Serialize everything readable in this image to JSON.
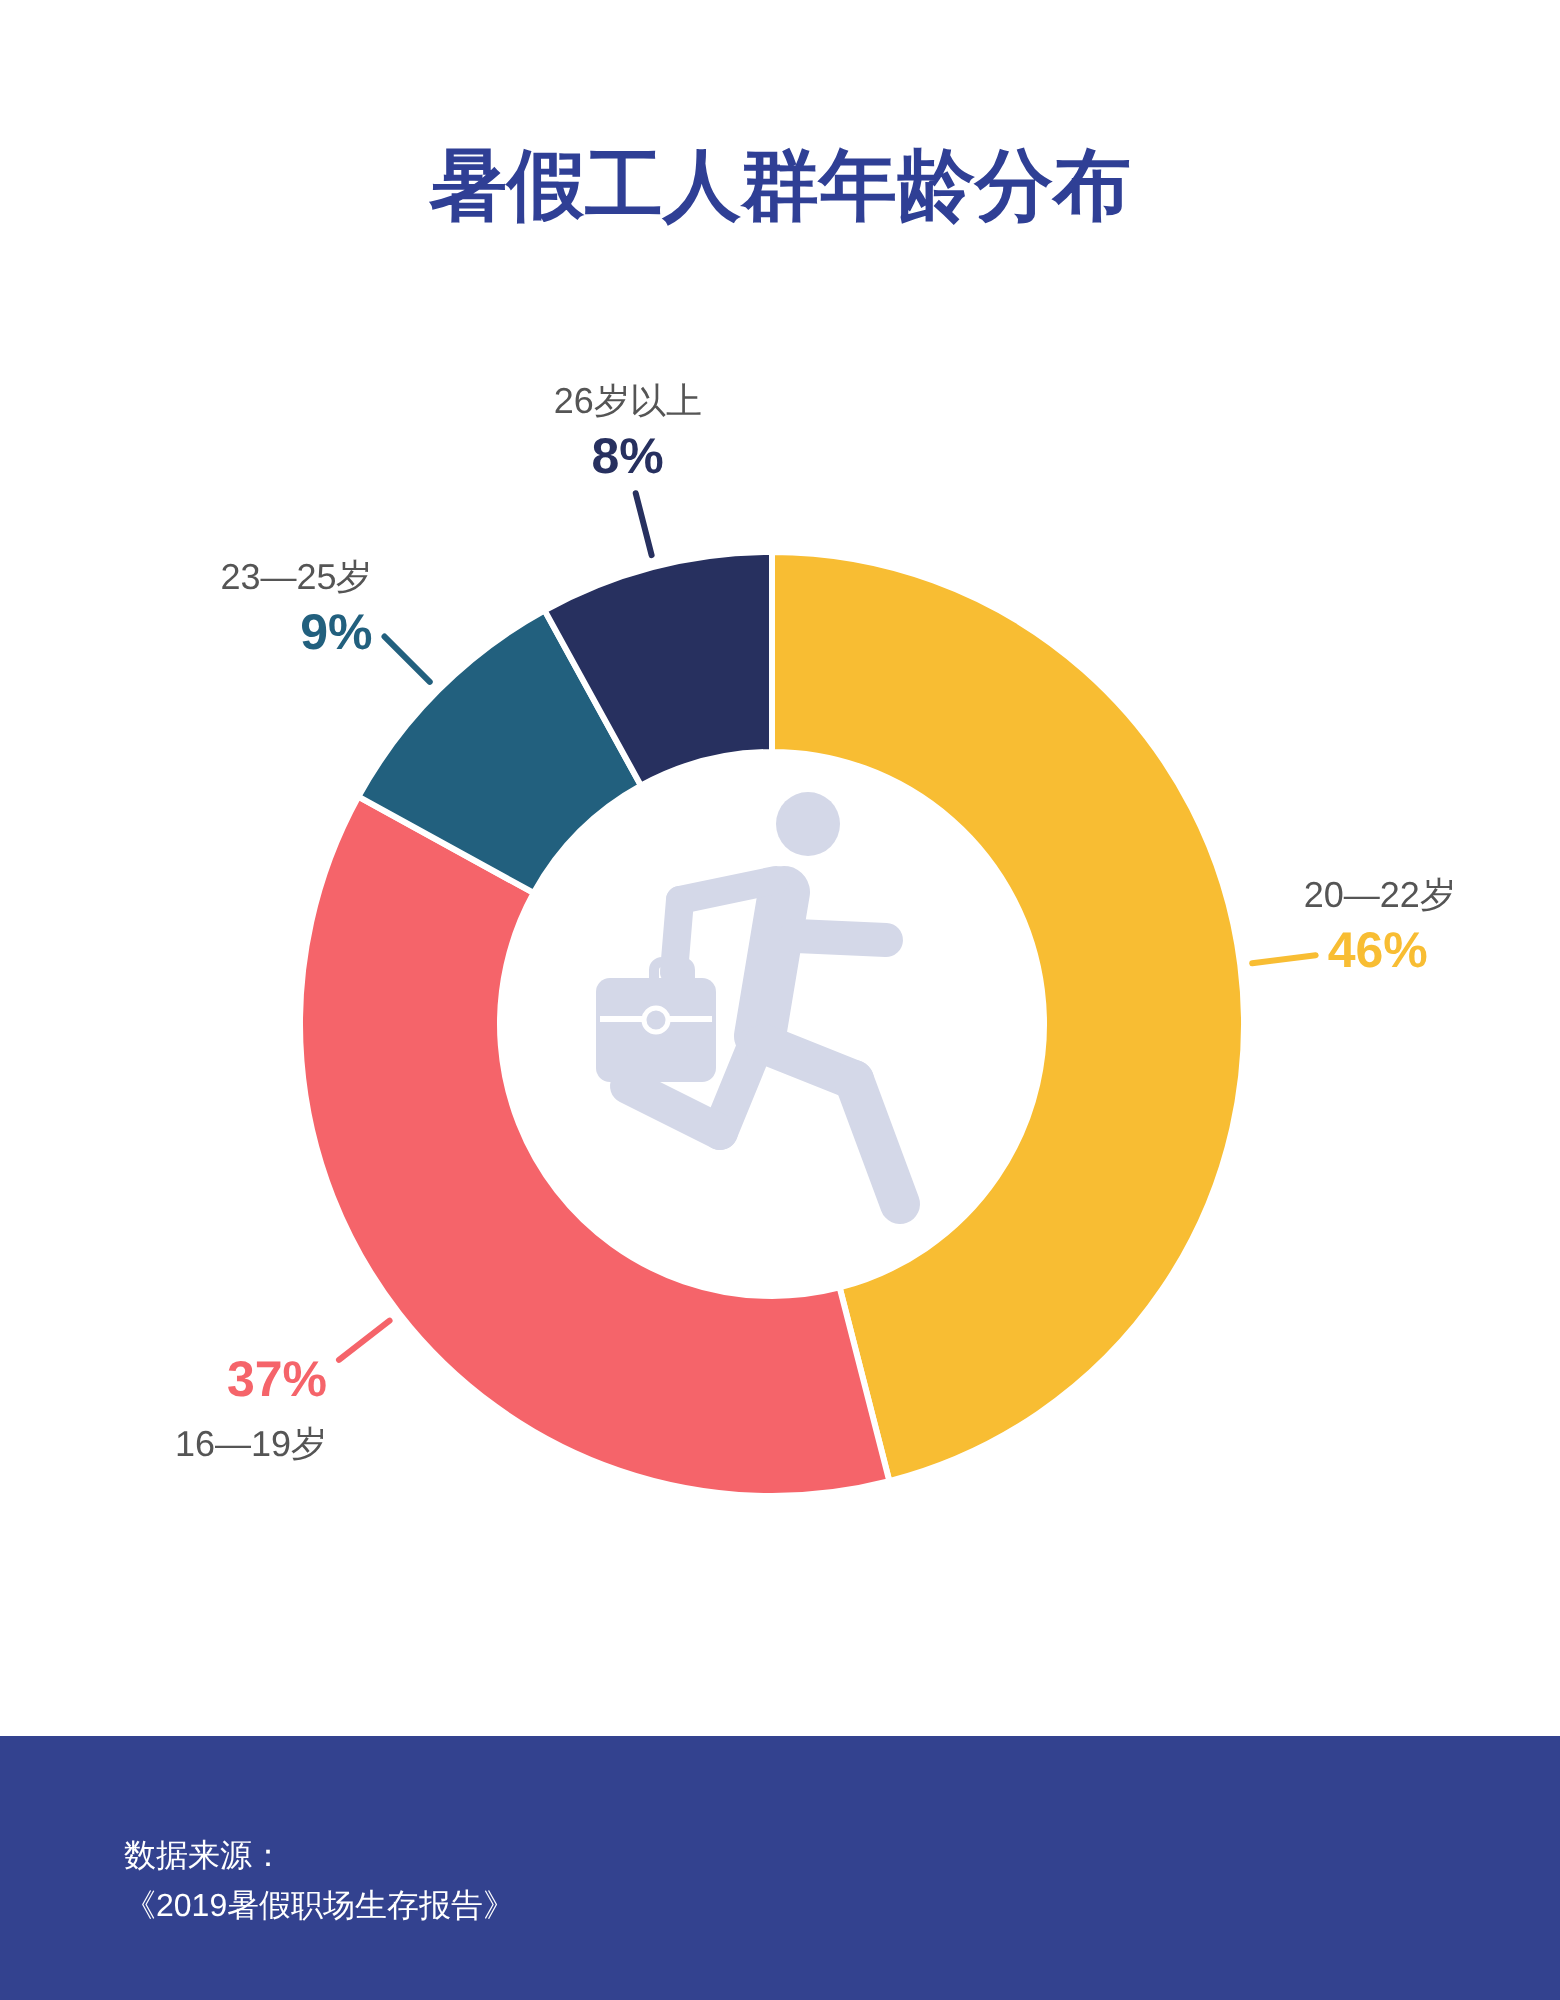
{
  "chart_data": {
    "type": "donut",
    "title": "暑假工人群年龄分布",
    "categories": [
      "20—22岁",
      "16—19岁",
      "23—25岁",
      "26岁以上"
    ],
    "values": [
      46,
      37,
      9,
      8
    ],
    "value_labels": [
      "46%",
      "37%",
      "9%",
      "8%"
    ],
    "colors": [
      "#f8bd33",
      "#f5646a",
      "#22607e",
      "#27305f"
    ],
    "annotations": [
      "数据来源：",
      "《2019暑假职场生存报告》"
    ]
  }
}
